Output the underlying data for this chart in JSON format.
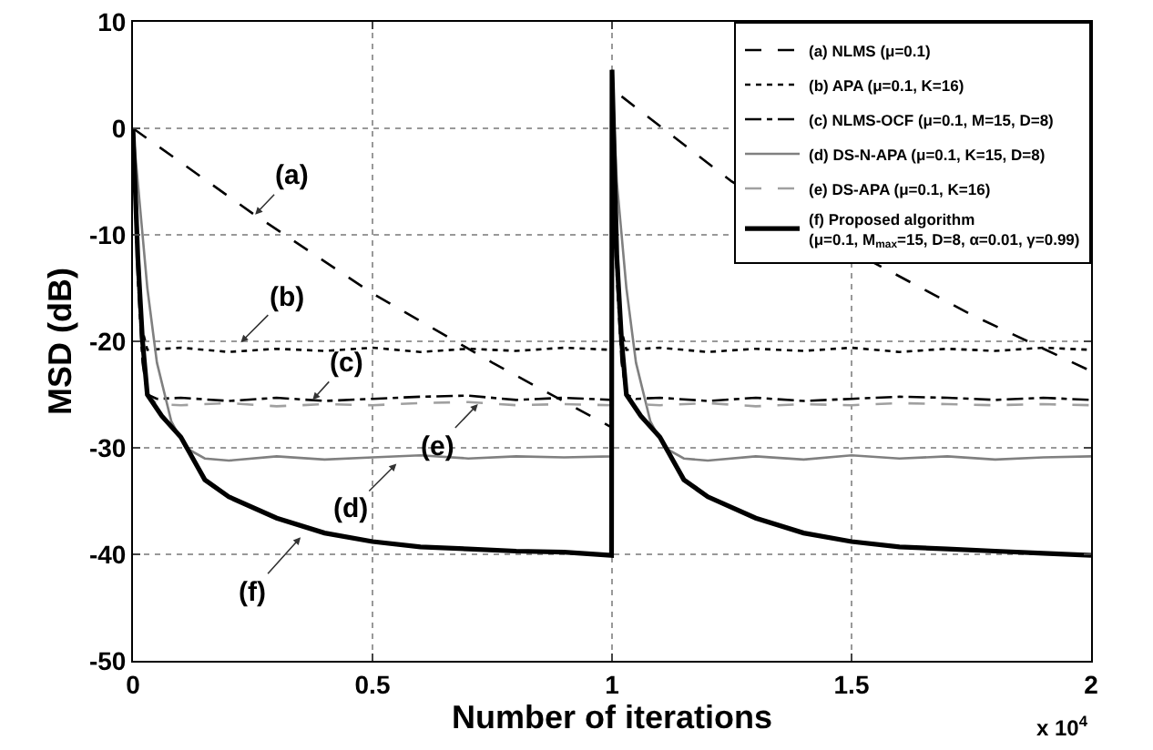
{
  "chart_data": {
    "type": "line",
    "xlabel": "Number of iterations",
    "ylabel": "MSD (dB)",
    "xlim": [
      0,
      2
    ],
    "xticks": [
      0,
      0.5,
      1,
      1.5,
      2
    ],
    "ylim": [
      -50,
      10
    ],
    "yticks": [
      -50,
      -40,
      -30,
      -20,
      -10,
      0,
      10
    ],
    "grid": true,
    "legend": "top right",
    "marker": "none",
    "annotations": [
      {
        "text": "(a)",
        "x": 0.255,
        "y": -8.1
      },
      {
        "text": "(b)",
        "x": 0.225,
        "y": -20.1
      },
      {
        "text": "(c)",
        "x": 0.375,
        "y": -25.5
      },
      {
        "text": "(d)",
        "x": 0.55,
        "y": -31.5
      },
      {
        "text": "(e)",
        "x": 0.72,
        "y": -25.9
      },
      {
        "text": "(f)",
        "x": 0.35,
        "y": -38.4
      },
      "x 10$^{4}$"
    ],
    "series": [
      {
        "name": "(a) NLMS (μ=0.1)",
        "color": "#000000",
        "line_style": "dashed",
        "x": [
          0,
          0.25,
          0.5,
          0.75,
          1.0,
          1.001,
          1.02,
          1.25,
          1.5,
          1.75,
          2.0
        ],
        "values": [
          0,
          -8,
          -15.5,
          -22,
          -28.1,
          null,
          3,
          -5,
          -11.5,
          -17.5,
          -22.8
        ]
      },
      {
        "name": "(b) APA (μ=0.1, K=16)",
        "color": "#000000",
        "line_style": "dotted",
        "x": [
          0,
          0.01,
          0.02,
          0.03,
          0.1,
          0.2,
          0.3,
          0.4,
          0.5,
          0.6,
          0.7,
          0.8,
          0.9,
          0.999,
          1.0,
          1.01,
          1.02,
          1.03,
          1.1,
          1.2,
          1.3,
          1.4,
          1.5,
          1.6,
          1.7,
          1.8,
          1.9,
          2.0
        ],
        "values": [
          0,
          -12,
          -19,
          -20.8,
          -20.6,
          -21,
          -20.7,
          -20.9,
          -20.6,
          -21,
          -20.7,
          -20.9,
          -20.6,
          -20.8,
          5.5,
          -12,
          -19,
          -20.8,
          -20.6,
          -21,
          -20.7,
          -20.9,
          -20.6,
          -21,
          -20.7,
          -20.9,
          -20.6,
          -20.8
        ]
      },
      {
        "name": "(c) NLMS-OCF (μ=0.1, M=15, D=8)",
        "color": "#000000",
        "line_style": "dashdot",
        "x": [
          0,
          0.01,
          0.02,
          0.03,
          0.05,
          0.1,
          0.2,
          0.3,
          0.4,
          0.5,
          0.6,
          0.7,
          0.8,
          0.9,
          0.999,
          1.0,
          1.01,
          1.02,
          1.03,
          1.05,
          1.1,
          1.2,
          1.3,
          1.4,
          1.5,
          1.6,
          1.7,
          1.8,
          1.9,
          2.0
        ],
        "values": [
          0,
          -14,
          -22,
          -25,
          -25.4,
          -25.3,
          -25.6,
          -25.3,
          -25.6,
          -25.4,
          -25.2,
          -25.1,
          -25.5,
          -25.3,
          -25.5,
          5.5,
          -14,
          -22,
          -25,
          -25.4,
          -25.3,
          -25.6,
          -25.3,
          -25.6,
          -25.4,
          -25.2,
          -25.3,
          -25.5,
          -25.3,
          -25.5
        ]
      },
      {
        "name": "(d) DS-N-APA (μ=0.1, K=15, D=8)",
        "color": "#808080",
        "line_style": "solid",
        "x": [
          0,
          0.01,
          0.03,
          0.05,
          0.08,
          0.11,
          0.15,
          0.2,
          0.3,
          0.4,
          0.5,
          0.6,
          0.7,
          0.8,
          0.9,
          0.999,
          1.0,
          1.01,
          1.03,
          1.05,
          1.08,
          1.11,
          1.15,
          1.2,
          1.3,
          1.4,
          1.5,
          1.6,
          1.7,
          1.8,
          1.9,
          2.0
        ],
        "values": [
          0,
          -5,
          -15,
          -22,
          -27.5,
          -30,
          -31,
          -31.2,
          -30.8,
          -31.1,
          -30.9,
          -30.7,
          -31,
          -30.8,
          -30.9,
          -30.8,
          5,
          -5,
          -15,
          -22,
          -27.5,
          -30,
          -31,
          -31.2,
          -30.8,
          -31.1,
          -30.7,
          -31,
          -30.8,
          -31.1,
          -30.9,
          -30.8
        ]
      },
      {
        "name": "(e) DS-APA (μ=0.1, K=16)",
        "color": "#a0a0a0",
        "line_style": "dashed",
        "x": [
          0,
          0.01,
          0.02,
          0.03,
          0.05,
          0.1,
          0.2,
          0.3,
          0.4,
          0.5,
          0.6,
          0.7,
          0.8,
          0.9,
          0.999,
          1.0,
          1.01,
          1.02,
          1.03,
          1.05,
          1.1,
          1.2,
          1.3,
          1.4,
          1.5,
          1.6,
          1.7,
          1.8,
          1.9,
          2.0
        ],
        "values": [
          0,
          -10,
          -20,
          -25,
          -25.9,
          -26,
          -25.8,
          -26.1,
          -25.9,
          -26,
          -25.8,
          -25.7,
          -26,
          -25.9,
          -26,
          5,
          -10,
          -20,
          -25,
          -25.9,
          -26,
          -25.8,
          -26.1,
          -25.9,
          -26,
          -25.8,
          -25.9,
          -26,
          -25.9,
          -26
        ]
      },
      {
        "name": "(f) Proposed algorithm\n(μ=0.1, M$_{max}$=15, D=8, α=0.01, γ=0.99)",
        "color": "#000000",
        "line_style": "solid",
        "x": [
          0,
          0.01,
          0.02,
          0.03,
          0.06,
          0.1,
          0.15,
          0.2,
          0.3,
          0.4,
          0.5,
          0.6,
          0.7,
          0.8,
          0.9,
          0.999,
          1.0,
          1.01,
          1.02,
          1.03,
          1.06,
          1.1,
          1.15,
          1.2,
          1.3,
          1.4,
          1.5,
          1.6,
          1.7,
          1.8,
          1.9,
          2.0
        ],
        "values": [
          0,
          -12,
          -20,
          -25,
          -27,
          -29,
          -33,
          -34.6,
          -36.6,
          -38,
          -38.8,
          -39.3,
          -39.5,
          -39.7,
          -39.8,
          -40.1,
          5.5,
          -12,
          -20,
          -25,
          -27,
          -29,
          -33,
          -34.6,
          -36.6,
          -38,
          -38.8,
          -39.3,
          -39.5,
          -39.7,
          -39.9,
          -40.1
        ]
      }
    ]
  }
}
